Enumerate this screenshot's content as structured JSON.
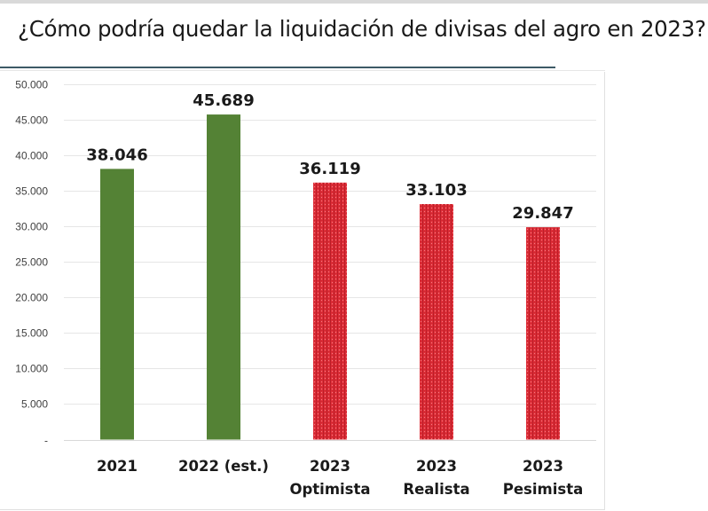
{
  "title": "¿Cómo podría quedar la liquidación de divisas del agro en 2023?",
  "colors": {
    "actual": "#548235",
    "projection": "#e0303a",
    "projection_pattern": "#b81c26",
    "gridline": "#e6e6e6",
    "title_rule": "#3d5a66"
  },
  "chart_data": {
    "type": "bar",
    "title": "¿Cómo podría quedar la liquidación de divisas del agro en 2023?",
    "xlabel": "",
    "ylabel": "",
    "ylim": [
      0,
      50000
    ],
    "grid": true,
    "legend": "none",
    "yticks": [
      0,
      5000,
      10000,
      15000,
      20000,
      25000,
      30000,
      35000,
      40000,
      45000,
      50000
    ],
    "ytick_labels": [
      "-",
      "5.000",
      "10.000",
      "15.000",
      "20.000",
      "25.000",
      "30.000",
      "35.000",
      "40.000",
      "45.000",
      "50.000"
    ],
    "categories": [
      [
        "2021"
      ],
      [
        "2022 (est.)"
      ],
      [
        "2023",
        "Optimista"
      ],
      [
        "2023",
        "Realista"
      ],
      [
        "2023",
        "Pesimista"
      ]
    ],
    "values": [
      38046,
      45689,
      36119,
      33103,
      29847
    ],
    "data_labels": [
      "38.046",
      "45.689",
      "36.119",
      "33.103",
      "29.847"
    ],
    "bar_styles": [
      "solid-green",
      "solid-green",
      "red-hatched",
      "red-hatched",
      "red-hatched"
    ]
  }
}
